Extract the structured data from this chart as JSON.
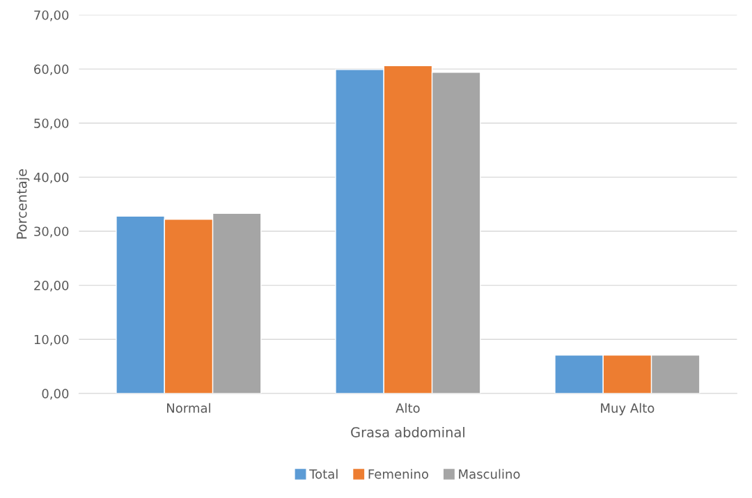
{
  "chart_data": {
    "type": "bar",
    "xlabel": "Grasa abdominal",
    "ylabel": "Porcentaje",
    "categories": [
      "Normal",
      "Alto",
      "Muy Alto"
    ],
    "series": [
      {
        "name": "Total",
        "color": "#5b9bd5",
        "values": [
          32.8,
          59.9,
          7.1
        ]
      },
      {
        "name": "Femenino",
        "color": "#ed7d31",
        "values": [
          32.2,
          60.6,
          7.1
        ]
      },
      {
        "name": "Masculino",
        "color": "#a5a5a5",
        "values": [
          33.3,
          59.4,
          7.1
        ]
      }
    ],
    "ylim": [
      0,
      70
    ],
    "yticks": [
      {
        "value": 0,
        "label": "0,00"
      },
      {
        "value": 10,
        "label": "10,00"
      },
      {
        "value": 20,
        "label": "20,00"
      },
      {
        "value": 30,
        "label": "30,00"
      },
      {
        "value": 40,
        "label": "40,00"
      },
      {
        "value": 50,
        "label": "50,00"
      },
      {
        "value": 60,
        "label": "60,00"
      },
      {
        "value": 70,
        "label": "70,00"
      }
    ],
    "grid": "y",
    "legend": "bottom"
  }
}
